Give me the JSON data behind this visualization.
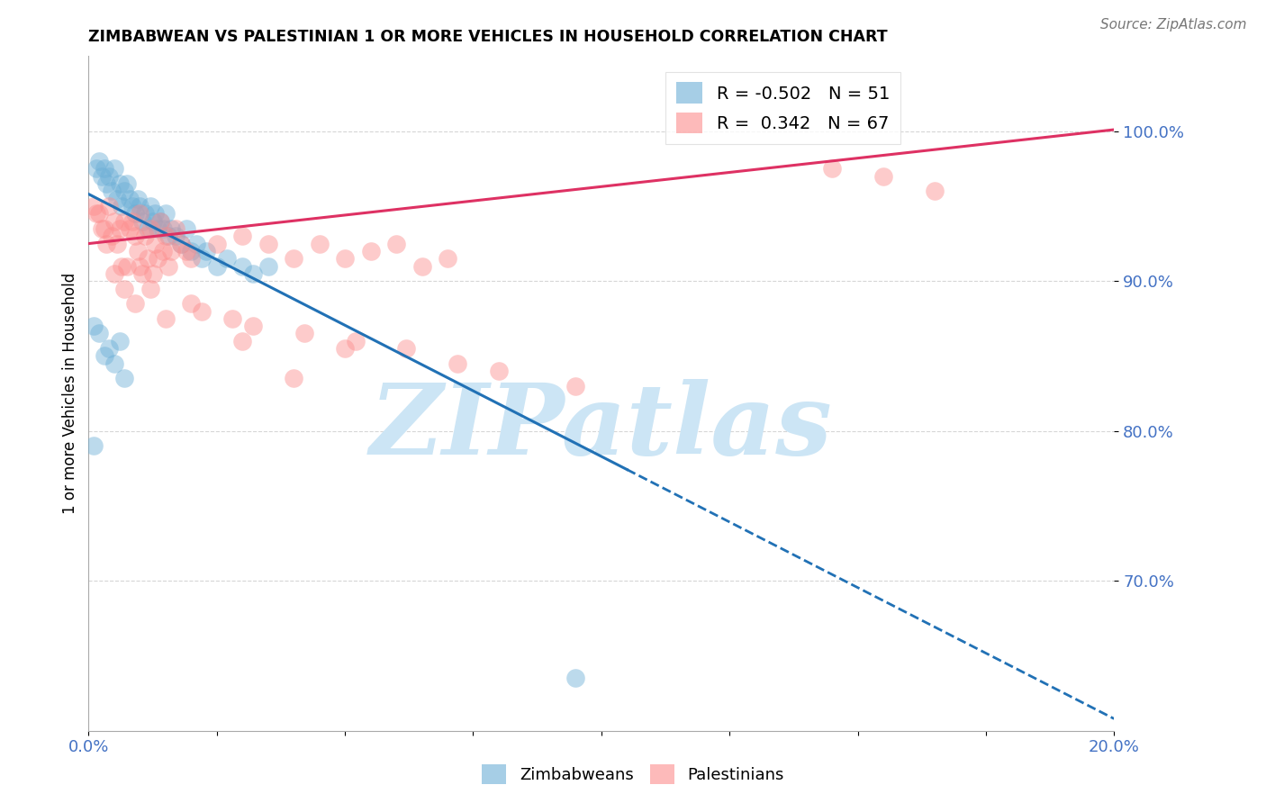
{
  "title": "ZIMBABWEAN VS PALESTINIAN 1 OR MORE VEHICLES IN HOUSEHOLD CORRELATION CHART",
  "source": "Source: ZipAtlas.com",
  "ylabel": "1 or more Vehicles in Household",
  "xlim": [
    0.0,
    20.0
  ],
  "ylim": [
    60.0,
    105.0
  ],
  "yticks": [
    70.0,
    80.0,
    90.0,
    100.0
  ],
  "xtick_positions": [
    0.0,
    2.5,
    5.0,
    7.5,
    10.0,
    12.5,
    15.0,
    17.5,
    20.0
  ],
  "xtick_labels": [
    "0.0%",
    "",
    "",
    "",
    "",
    "",
    "",
    "",
    "20.0%"
  ],
  "blue_R": -0.502,
  "blue_N": 51,
  "pink_R": 0.342,
  "pink_N": 67,
  "blue_label": "Zimbabweans",
  "pink_label": "Palestinians",
  "blue_color": "#6baed6",
  "pink_color": "#fc8d8d",
  "blue_line_color": "#2171b5",
  "pink_line_color": "#de3163",
  "tick_label_color": "#4472c4",
  "watermark": "ZIPatlas",
  "watermark_color": "#cce5f5",
  "blue_line_x0": 0.0,
  "blue_line_y0": 95.8,
  "blue_line_slope": -1.75,
  "blue_line_solid_end": 10.5,
  "pink_line_x0": 0.0,
  "pink_line_y0": 92.5,
  "pink_line_slope": 0.38,
  "blue_scatter_x": [
    0.15,
    0.2,
    0.25,
    0.3,
    0.35,
    0.4,
    0.45,
    0.5,
    0.55,
    0.6,
    0.65,
    0.7,
    0.75,
    0.8,
    0.85,
    0.9,
    0.95,
    1.0,
    1.05,
    1.1,
    1.15,
    1.2,
    1.25,
    1.3,
    1.35,
    1.4,
    1.45,
    1.5,
    1.55,
    1.6,
    1.7,
    1.8,
    1.9,
    2.0,
    2.1,
    2.2,
    2.3,
    2.5,
    2.7,
    3.0,
    3.2,
    3.5,
    0.1,
    0.2,
    0.3,
    0.4,
    0.5,
    0.6,
    0.7,
    9.5,
    0.1
  ],
  "blue_scatter_y": [
    97.5,
    98.0,
    97.0,
    97.5,
    96.5,
    97.0,
    96.0,
    97.5,
    95.5,
    96.5,
    95.0,
    96.0,
    96.5,
    95.5,
    95.0,
    94.5,
    95.5,
    95.0,
    94.0,
    94.5,
    93.5,
    95.0,
    94.0,
    94.5,
    93.5,
    94.0,
    93.5,
    94.5,
    93.0,
    93.5,
    93.0,
    92.5,
    93.5,
    92.0,
    92.5,
    91.5,
    92.0,
    91.0,
    91.5,
    91.0,
    90.5,
    91.0,
    87.0,
    86.5,
    85.0,
    85.5,
    84.5,
    86.0,
    83.5,
    63.5,
    79.0
  ],
  "pink_scatter_x": [
    0.1,
    0.2,
    0.3,
    0.4,
    0.5,
    0.6,
    0.7,
    0.8,
    0.9,
    1.0,
    1.1,
    1.2,
    1.3,
    1.4,
    1.5,
    1.6,
    1.7,
    1.8,
    1.9,
    2.0,
    2.5,
    3.0,
    3.5,
    4.0,
    4.5,
    5.0,
    5.5,
    6.0,
    6.5,
    7.0,
    0.15,
    0.25,
    0.35,
    0.45,
    0.55,
    0.65,
    0.75,
    0.85,
    0.95,
    1.05,
    1.15,
    1.25,
    1.35,
    1.45,
    1.55,
    2.2,
    2.8,
    3.2,
    4.2,
    5.2,
    6.2,
    7.2,
    8.0,
    9.5,
    14.5,
    15.5,
    16.5,
    0.5,
    0.7,
    0.9,
    1.0,
    1.2,
    1.5,
    2.0,
    3.0,
    4.0,
    5.0
  ],
  "pink_scatter_y": [
    95.0,
    94.5,
    93.5,
    95.0,
    94.0,
    93.5,
    94.0,
    93.5,
    93.0,
    94.5,
    93.0,
    93.5,
    92.5,
    94.0,
    93.0,
    92.0,
    93.5,
    92.5,
    92.0,
    91.5,
    92.5,
    93.0,
    92.5,
    91.5,
    92.5,
    91.5,
    92.0,
    92.5,
    91.0,
    91.5,
    94.5,
    93.5,
    92.5,
    93.0,
    92.5,
    91.0,
    91.0,
    94.0,
    92.0,
    90.5,
    91.5,
    90.5,
    91.5,
    92.0,
    91.0,
    88.0,
    87.5,
    87.0,
    86.5,
    86.0,
    85.5,
    84.5,
    84.0,
    83.0,
    97.5,
    97.0,
    96.0,
    90.5,
    89.5,
    88.5,
    91.0,
    89.5,
    87.5,
    88.5,
    86.0,
    83.5,
    85.5
  ]
}
